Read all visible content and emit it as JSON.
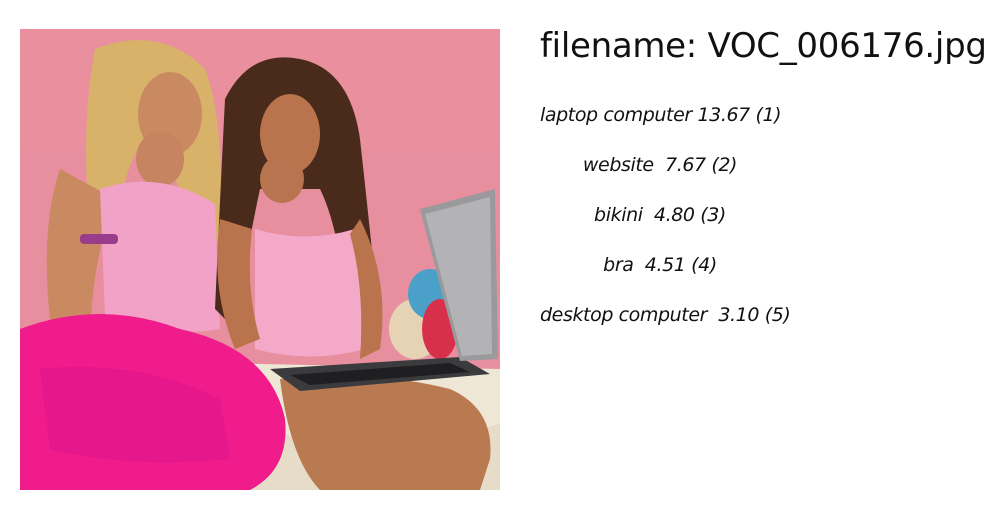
{
  "header": {
    "filename_label": "filename: VOC_006176.jpg"
  },
  "photo": {
    "subject": "photo-two-women-laptop"
  },
  "predictions": [
    {
      "label": "laptop computer",
      "score": "13.67",
      "rank": "(1)"
    },
    {
      "label": "website",
      "score": "7.67",
      "rank": "(2)"
    },
    {
      "label": "bikini",
      "score": "4.80",
      "rank": "(3)"
    },
    {
      "label": "bra",
      "score": "4.51",
      "rank": "(4)"
    },
    {
      "label": "desktop computer",
      "score": "3.10",
      "rank": "(5)"
    }
  ],
  "colors": {
    "wall": "#e88f9f",
    "pink_pants": "#f01c8c",
    "pink_top": "#f2a2c6",
    "skin": "#c98a62",
    "hair_blonde": "#d9b26a",
    "hair_brown": "#4a2a1a",
    "laptop": "#9a9a9c",
    "bedsheet": "#efe7d6"
  }
}
